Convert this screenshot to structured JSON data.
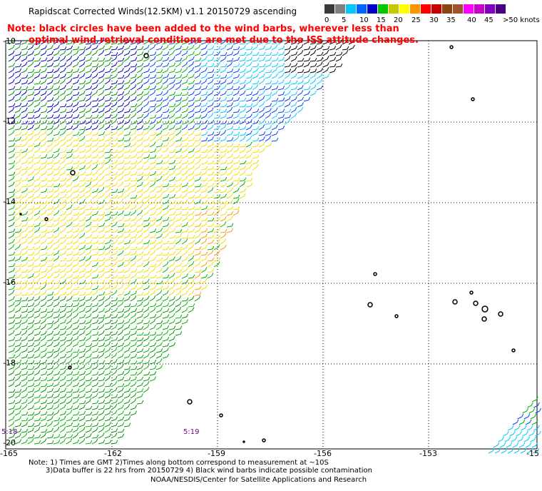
{
  "title": "Rapidscat Corrected Winds(12.5KM) v1.1 20150729 ascending",
  "note_line1": "Note: black circles have been added to the wind barbs, wherever less than",
  "note_line2": "optimal wind retrieval conditions are met due to the ISS attitude changes.",
  "color_scale": {
    "labels": [
      "0",
      "5",
      "10",
      "15",
      "20",
      "25",
      "30",
      "35",
      "40",
      "45",
      ">50 knots"
    ],
    "colors": [
      "#3a3a3a",
      "#808080",
      "#00c8ff",
      "#0064ff",
      "#0000c8",
      "#00c800",
      "#c8c800",
      "#ffff00",
      "#ff9600",
      "#ff0000",
      "#c80000",
      "#8b4513",
      "#a0522d",
      "#ff00ff",
      "#c800c8",
      "#8000c0",
      "#4b0082"
    ]
  },
  "axes": {
    "lat_labels": [
      "-10",
      "-12",
      "-14",
      "-16",
      "-18",
      "-20"
    ],
    "lon_labels": [
      "-165",
      "-162",
      "-159",
      "-156",
      "-153",
      "-15"
    ]
  },
  "times": [
    "5:18",
    "5:19"
  ],
  "footer": {
    "line1": "Note: 1) Times are GMT 2)Times along bottom correspond to measurement at ~10S",
    "line2": "3)Data buffer is 22 hrs from 20150729 4) Black wind barbs indicate possible contamination",
    "line3": "NOAA/NESDIS/Center for Satellite Applications and Research"
  },
  "colors": {
    "note": "#ff0000",
    "barb_black": "#000000",
    "barb_cyan": "#00c8ff",
    "barb_blue": "#0040ff",
    "barb_navy": "#0000c0",
    "barb_green": "#00b400",
    "barb_dgreen": "#009600",
    "barb_yellow": "#f0dc00",
    "barb_orange": "#ff9600"
  }
}
